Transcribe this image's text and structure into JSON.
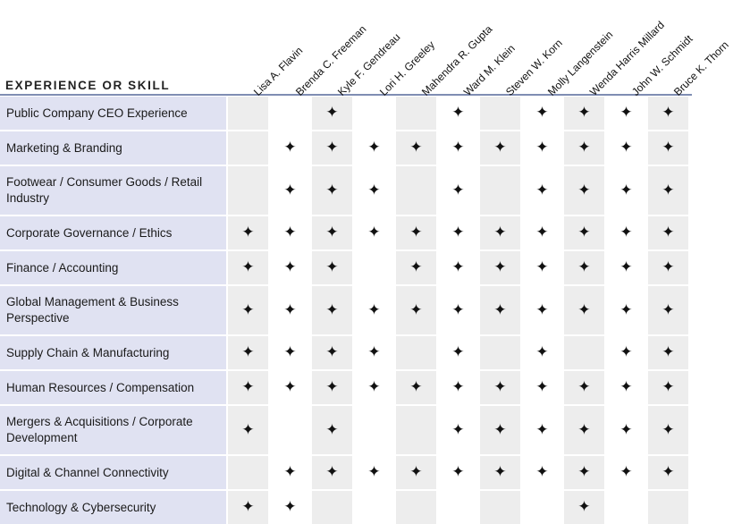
{
  "header": {
    "row_header": "EXPERIENCE OR SKILL",
    "directors": [
      "Lisa A. Flavin",
      "Brenda C. Freeman",
      "Kyle F. Gendreau",
      "Lori H. Greeley",
      "Mahendra R. Gupta",
      "Ward M. Klein",
      "Steven W. Korn",
      "Molly Langenstein",
      "Wenda Harris Millard",
      "John W. Schmidt",
      "Bruce K. Thorn"
    ]
  },
  "marker_glyph": "✦",
  "colors": {
    "row_label_bg": "#e0e2f2",
    "shaded_cell": "#ededed",
    "rule": "#7f8db3"
  },
  "skills": [
    {
      "label": "Public Company CEO Experience",
      "marks": [
        0,
        0,
        1,
        0,
        0,
        1,
        0,
        1,
        1,
        1,
        1
      ]
    },
    {
      "label": "Marketing & Branding",
      "marks": [
        0,
        1,
        1,
        1,
        1,
        1,
        1,
        1,
        1,
        1,
        1
      ]
    },
    {
      "label": "Footwear / Consumer Goods / Retail Industry",
      "marks": [
        0,
        1,
        1,
        1,
        0,
        1,
        0,
        1,
        1,
        1,
        1
      ]
    },
    {
      "label": "Corporate Governance / Ethics",
      "marks": [
        1,
        1,
        1,
        1,
        1,
        1,
        1,
        1,
        1,
        1,
        1
      ]
    },
    {
      "label": "Finance / Accounting",
      "marks": [
        1,
        1,
        1,
        0,
        1,
        1,
        1,
        1,
        1,
        1,
        1
      ]
    },
    {
      "label": "Global Management & Business Perspective",
      "marks": [
        1,
        1,
        1,
        1,
        1,
        1,
        1,
        1,
        1,
        1,
        1
      ]
    },
    {
      "label": "Supply Chain & Manufacturing",
      "marks": [
        1,
        1,
        1,
        1,
        0,
        1,
        0,
        1,
        0,
        1,
        1
      ]
    },
    {
      "label": "Human Resources / Compensation",
      "marks": [
        1,
        1,
        1,
        1,
        1,
        1,
        1,
        1,
        1,
        1,
        1
      ]
    },
    {
      "label": "Mergers & Acquisitions / Corporate Development",
      "marks": [
        1,
        0,
        1,
        0,
        0,
        1,
        1,
        1,
        1,
        1,
        1
      ]
    },
    {
      "label": "Digital & Channel Connectivity",
      "marks": [
        0,
        1,
        1,
        1,
        1,
        1,
        1,
        1,
        1,
        1,
        1
      ]
    },
    {
      "label": "Technology & Cybersecurity",
      "marks": [
        1,
        1,
        0,
        0,
        0,
        0,
        0,
        0,
        1,
        0,
        0
      ]
    }
  ]
}
